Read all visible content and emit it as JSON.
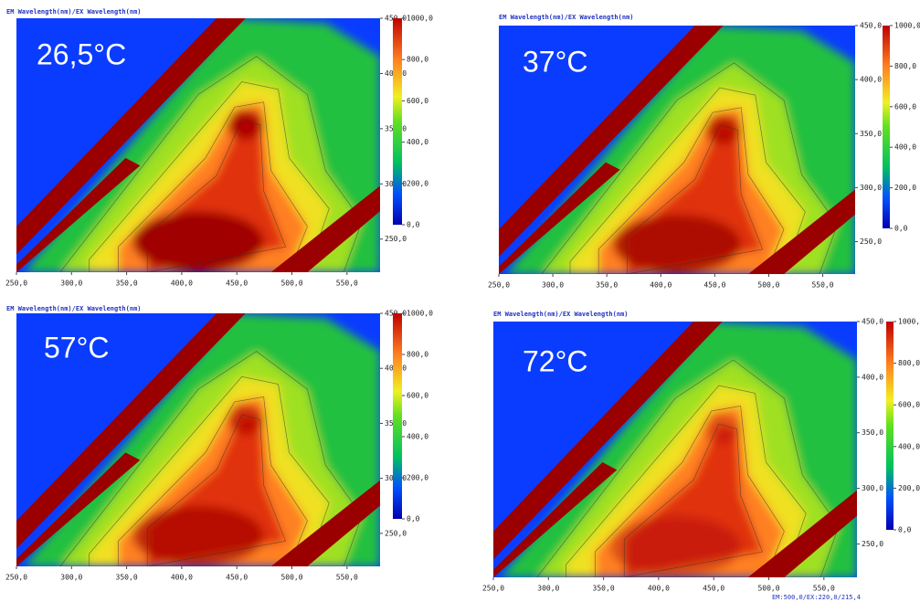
{
  "chart_data": [
    {
      "type": "contour",
      "title": "EM Wavelength(nm)/EX Wavelength(nm)",
      "annotation": "26,5°C",
      "xlim": [
        250,
        580
      ],
      "ylim": [
        220,
        450
      ],
      "xticks": [
        {
          "value": 250,
          "label": "250,0"
        },
        {
          "value": 300,
          "label": "300,0"
        },
        {
          "value": 350,
          "label": "350,0"
        },
        {
          "value": 400,
          "label": "400,0"
        },
        {
          "value": 450,
          "label": "450,0"
        },
        {
          "value": 500,
          "label": "500,0"
        },
        {
          "value": 550,
          "label": "550,0"
        }
      ],
      "yticks": [
        {
          "value": 250,
          "label": "250,0"
        },
        {
          "value": 300,
          "label": "300,0"
        },
        {
          "value": 350,
          "label": "350,0"
        },
        {
          "value": 400,
          "label": "400,0"
        },
        {
          "value": 450,
          "label": "450,0"
        }
      ],
      "zlim": [
        0,
        1000
      ],
      "zticks": [
        {
          "value": 0,
          "label": "0,0"
        },
        {
          "value": 200,
          "label": "200,0"
        },
        {
          "value": 400,
          "label": "400,0"
        },
        {
          "value": 600,
          "label": "600,0"
        },
        {
          "value": 800,
          "label": "800,0"
        },
        {
          "value": 1000,
          "label": "1000,0"
        }
      ]
    },
    {
      "type": "contour",
      "title": "EM Wavelength(nm)/EX Wavelength(nm)",
      "annotation": "37°C",
      "xlim": [
        250,
        580
      ],
      "ylim": [
        220,
        450
      ],
      "xticks": [
        {
          "value": 250,
          "label": "250,0"
        },
        {
          "value": 300,
          "label": "300,0"
        },
        {
          "value": 350,
          "label": "350,0"
        },
        {
          "value": 400,
          "label": "400,0"
        },
        {
          "value": 450,
          "label": "450,0"
        },
        {
          "value": 500,
          "label": "500,0"
        },
        {
          "value": 550,
          "label": "550,0"
        }
      ],
      "yticks": [
        {
          "value": 250,
          "label": "250,0"
        },
        {
          "value": 300,
          "label": "300,0"
        },
        {
          "value": 350,
          "label": "350,0"
        },
        {
          "value": 400,
          "label": "400,0"
        },
        {
          "value": 450,
          "label": "450,0"
        }
      ],
      "zlim": [
        0,
        1000
      ],
      "zticks": [
        {
          "value": 0,
          "label": "0,0"
        },
        {
          "value": 200,
          "label": "200,0"
        },
        {
          "value": 400,
          "label": "400,0"
        },
        {
          "value": 600,
          "label": "600,0"
        },
        {
          "value": 800,
          "label": "800,0"
        },
        {
          "value": 1000,
          "label": "1000,0"
        }
      ]
    },
    {
      "type": "contour",
      "title": "EM Wavelength(nm)/EX Wavelength(nm)",
      "annotation": "57°C",
      "xlim": [
        250,
        580
      ],
      "ylim": [
        220,
        450
      ],
      "xticks": [
        {
          "value": 250,
          "label": "250,0"
        },
        {
          "value": 300,
          "label": "300,0"
        },
        {
          "value": 350,
          "label": "350,0"
        },
        {
          "value": 400,
          "label": "400,0"
        },
        {
          "value": 450,
          "label": "450,0"
        },
        {
          "value": 500,
          "label": "500,0"
        },
        {
          "value": 550,
          "label": "550,0"
        }
      ],
      "yticks": [
        {
          "value": 250,
          "label": "250,0"
        },
        {
          "value": 300,
          "label": "300,0"
        },
        {
          "value": 350,
          "label": "350,0"
        },
        {
          "value": 400,
          "label": "400,0"
        },
        {
          "value": 450,
          "label": "450,0"
        }
      ],
      "zlim": [
        0,
        1000
      ],
      "zticks": [
        {
          "value": 0,
          "label": "0,0"
        },
        {
          "value": 200,
          "label": "200,0"
        },
        {
          "value": 400,
          "label": "400,0"
        },
        {
          "value": 600,
          "label": "600,0"
        },
        {
          "value": 800,
          "label": "800,0"
        },
        {
          "value": 1000,
          "label": "1000,0"
        }
      ]
    },
    {
      "type": "contour",
      "title": "EM Wavelength(nm)/EX Wavelength(nm)",
      "annotation": "72°C",
      "xlim": [
        250,
        580
      ],
      "ylim": [
        220,
        450
      ],
      "xticks": [
        {
          "value": 250,
          "label": "250,0"
        },
        {
          "value": 300,
          "label": "300,0"
        },
        {
          "value": 350,
          "label": "350,0"
        },
        {
          "value": 400,
          "label": "400,0"
        },
        {
          "value": 450,
          "label": "450,0"
        },
        {
          "value": 500,
          "label": "500,0"
        },
        {
          "value": 550,
          "label": "550,0"
        }
      ],
      "yticks": [
        {
          "value": 250,
          "label": "250,0"
        },
        {
          "value": 300,
          "label": "300,0"
        },
        {
          "value": 350,
          "label": "350,0"
        },
        {
          "value": 400,
          "label": "400,0"
        },
        {
          "value": 450,
          "label": "450,0"
        }
      ],
      "zlim": [
        0,
        1000
      ],
      "zticks": [
        {
          "value": 0,
          "label": "0,0"
        },
        {
          "value": 200,
          "label": "200,0"
        },
        {
          "value": 400,
          "label": "400,0"
        },
        {
          "value": 600,
          "label": "600,0"
        },
        {
          "value": 800,
          "label": "800,0"
        },
        {
          "value": 1000,
          "label": "1000,0"
        }
      ]
    }
  ],
  "status": "EM:500,0/EX:220,0/215,4"
}
